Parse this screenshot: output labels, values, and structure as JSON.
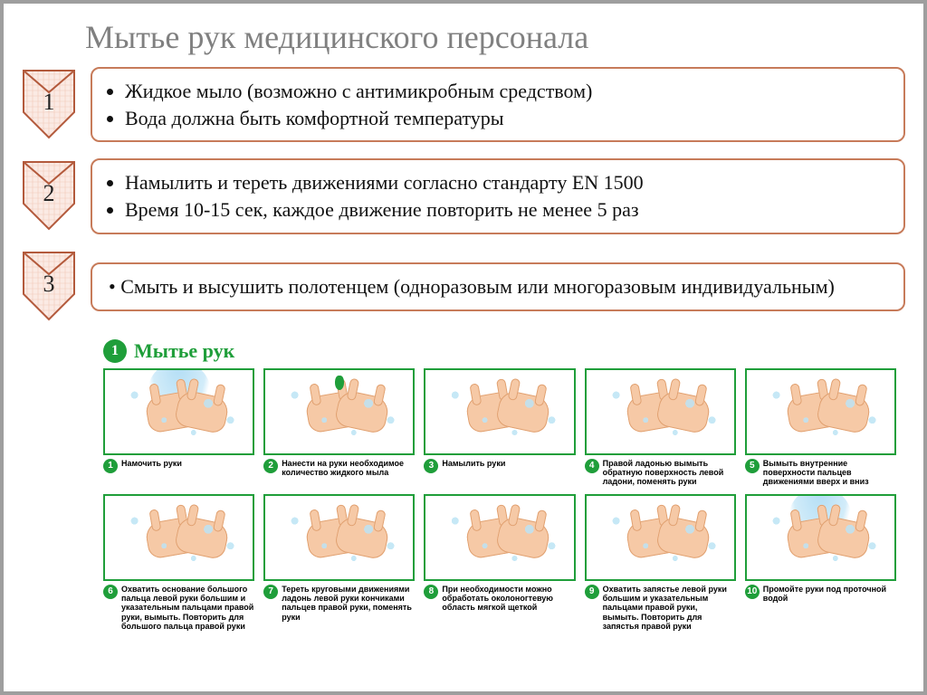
{
  "title": "Мытье рук медицинского персонала",
  "colors": {
    "chevron_border": "#b35a3c",
    "chevron_grid_light": "#fbeae4",
    "chevron_grid_line": "#f2c8b8",
    "box_border": "#c77b5a",
    "green": "#1f9e3a",
    "frame": "#9e9e9e",
    "title_gray": "#808080"
  },
  "steps": [
    {
      "num": "1",
      "bullets": [
        "Жидкое мыло (возможно с антимикробным средством)",
        "Вода должна быть комфортной температуры"
      ],
      "justify": false
    },
    {
      "num": "2",
      "bullets": [
        "Намылить и тереть движениями согласно стандарту EN 1500",
        "Время 10-15 сек, каждое движение повторить не менее 5 раз"
      ],
      "justify": false
    },
    {
      "num": "3",
      "text": "• Смыть и высушить полотенцем (одноразовым или многоразовым индивидуальным)",
      "justify": true
    }
  ],
  "section": {
    "num": "1",
    "label": "Мытье рук"
  },
  "handsteps": [
    {
      "n": "1",
      "caption": "Намочить руки",
      "water": true
    },
    {
      "n": "2",
      "caption": "Нанести на руки необходимое количество жидкого мыла",
      "drop": true
    },
    {
      "n": "3",
      "caption": "Намылить руки"
    },
    {
      "n": "4",
      "caption": "Правой ладонью вымыть обратную поверхность левой ладони, поменять руки"
    },
    {
      "n": "5",
      "caption": "Вымыть внутренние поверхности пальцев движениями вверх и вниз"
    },
    {
      "n": "6",
      "caption": "Охватить основание большого пальца левой руки большим и указательным пальцами правой руки, вымыть. Повторить для большого пальца правой руки"
    },
    {
      "n": "7",
      "caption": "Тереть круговыми движениями ладонь левой руки кончиками пальцев правой руки, поменять руки"
    },
    {
      "n": "8",
      "caption": "При необходимости можно обработать околоногтевую область мягкой щеткой"
    },
    {
      "n": "9",
      "caption": "Охватить запястье левой руки большим и указательным пальцами правой руки, вымыть. Повторить для запястья правой руки"
    },
    {
      "n": "10",
      "caption": "Промойте руки под проточной водой",
      "water": true
    }
  ]
}
